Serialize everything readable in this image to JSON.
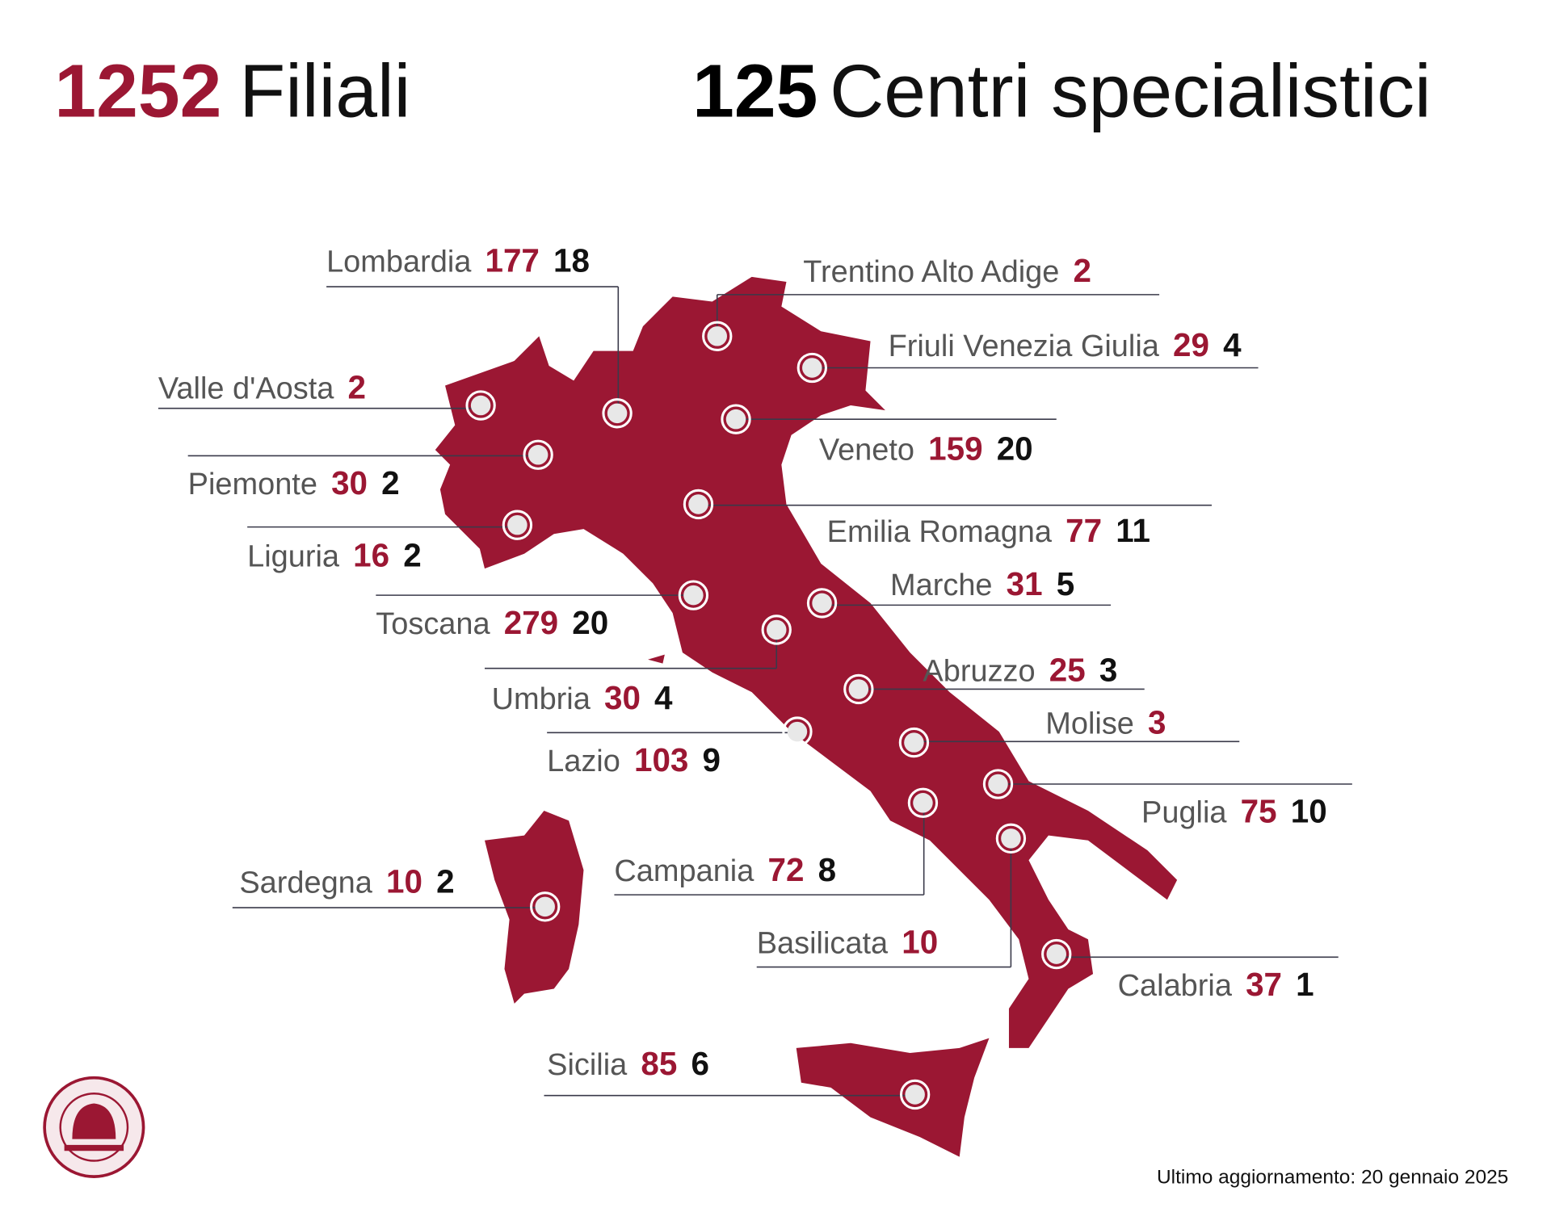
{
  "header": {
    "branches_count": "1252",
    "branches_label": "Filiali",
    "centers_count": "125",
    "centers_label": "Centri specialistici"
  },
  "regions": [
    {
      "name": "Lombardia",
      "branches": 177,
      "centers": 18
    },
    {
      "name": "Trentino Alto Adige",
      "branches": 2
    },
    {
      "name": "Friuli Venezia Giulia",
      "branches": 29,
      "centers": 4
    },
    {
      "name": "Valle d'Aosta",
      "branches": 2
    },
    {
      "name": "Veneto",
      "branches": 159,
      "centers": 20
    },
    {
      "name": "Piemonte",
      "branches": 30,
      "centers": 2
    },
    {
      "name": "Emilia Romagna",
      "branches": 77,
      "centers": 11
    },
    {
      "name": "Liguria",
      "branches": 16,
      "centers": 2
    },
    {
      "name": "Marche",
      "branches": 31,
      "centers": 5
    },
    {
      "name": "Toscana",
      "branches": 279,
      "centers": 20
    },
    {
      "name": "Abruzzo",
      "branches": 25,
      "centers": 3
    },
    {
      "name": "Umbria",
      "branches": 30,
      "centers": 4
    },
    {
      "name": "Molise",
      "branches": 3
    },
    {
      "name": "Lazio",
      "branches": 103,
      "centers": 9
    },
    {
      "name": "Puglia",
      "branches": 75,
      "centers": 10
    },
    {
      "name": "Campania",
      "branches": 72,
      "centers": 8
    },
    {
      "name": "Sardegna",
      "branches": 10,
      "centers": 2
    },
    {
      "name": "Basilicata",
      "branches": 10
    },
    {
      "name": "Calabria",
      "branches": 37,
      "centers": 1
    },
    {
      "name": "Sicilia",
      "branches": 85,
      "centers": 6
    }
  ],
  "footer": {
    "updated": "Ultimo aggiornamento: 20 gennaio 2025"
  }
}
